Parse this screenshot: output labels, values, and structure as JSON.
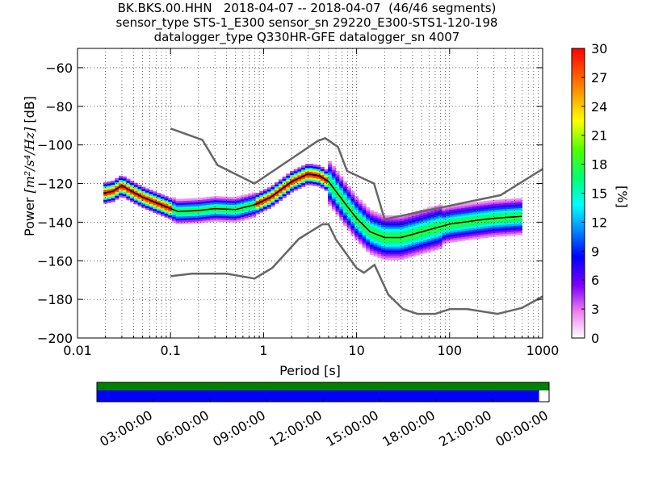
{
  "header": {
    "line1": "BK.BKS.00.HHN   2018-04-07 -- 2018-04-07  (46/46 segments)",
    "line2": "sensor_type STS-1_E300 sensor_sn 29220_E300-STS1-120-198",
    "line3": "datalogger_type Q330HR-GFE datalogger_sn 4007"
  },
  "chart_data": {
    "type": "heatmap",
    "xlabel": "Period [s]",
    "ylabel_prefix": "Power ",
    "ylabel_units": "[m²/s⁴/Hz]",
    "ylabel_suffix": " [dB]",
    "xscale": "log",
    "xlim": [
      0.01,
      1000
    ],
    "ylim": [
      -200,
      -50
    ],
    "xticks": [
      {
        "v": 0.01,
        "label": "0.01"
      },
      {
        "v": 0.1,
        "label": "0.1"
      },
      {
        "v": 1,
        "label": "1"
      },
      {
        "v": 10,
        "label": "10"
      },
      {
        "v": 100,
        "label": "100"
      },
      {
        "v": 1000,
        "label": "1000"
      }
    ],
    "yticks": [
      {
        "v": -60,
        "label": "−60"
      },
      {
        "v": -80,
        "label": "−80"
      },
      {
        "v": -100,
        "label": "−100"
      },
      {
        "v": -120,
        "label": "−120"
      },
      {
        "v": -140,
        "label": "−140"
      },
      {
        "v": -160,
        "label": "−160"
      },
      {
        "v": -180,
        "label": "−180"
      },
      {
        "v": -200,
        "label": "−200"
      }
    ],
    "grid": true,
    "mean_curve": {
      "color": "#000000",
      "x": [
        0.019,
        0.024,
        0.03,
        0.035,
        0.05,
        0.08,
        0.12,
        0.2,
        0.3,
        0.5,
        0.8,
        1.2,
        2,
        3,
        4,
        5,
        6,
        8,
        10,
        14,
        20,
        30,
        50,
        100,
        200,
        300,
        600
      ],
      "y": [
        -125,
        -124,
        -121,
        -123,
        -127,
        -131,
        -134.5,
        -134,
        -133,
        -133.5,
        -131,
        -127,
        -119,
        -115,
        -116,
        -119,
        -124,
        -132,
        -138,
        -145,
        -148,
        -148,
        -145,
        -141,
        -139,
        -138,
        -137
      ]
    },
    "noise_models": {
      "color": "#666666",
      "high": {
        "x": [
          0.1,
          0.22,
          0.32,
          0.8,
          3.8,
          4.6,
          6.3,
          7.9,
          15.4,
          20,
          354,
          1000
        ],
        "y": [
          -91.5,
          -97.4,
          -110.5,
          -120,
          -98,
          -96.5,
          -101,
          -113.5,
          -120,
          -138.5,
          -126,
          -112.5
        ]
      },
      "low": {
        "x": [
          0.1,
          0.17,
          0.4,
          0.8,
          1.24,
          2.4,
          4.3,
          5,
          6,
          10,
          12,
          15.6,
          21.9,
          31.6,
          45,
          70,
          101,
          154,
          328,
          600,
          1000
        ],
        "y": [
          -168,
          -166.7,
          -166.7,
          -169.2,
          -163.7,
          -148.6,
          -141.1,
          -141.1,
          -149,
          -163.8,
          -166.2,
          -162.1,
          -177.5,
          -185,
          -187.5,
          -187.5,
          -185,
          -185,
          -187.5,
          -184.4,
          -178.5
        ]
      }
    },
    "colorbar": {
      "label": "[%]",
      "min": 0,
      "max": 30,
      "ticks": [
        {
          "v": 30,
          "label": "30"
        },
        {
          "v": 27,
          "label": "27"
        },
        {
          "v": 24,
          "label": "24"
        },
        {
          "v": 21,
          "label": "21"
        },
        {
          "v": 18,
          "label": "18"
        },
        {
          "v": 15,
          "label": "15"
        },
        {
          "v": 12,
          "label": "12"
        },
        {
          "v": 9,
          "label": "9"
        },
        {
          "v": 6,
          "label": "6"
        },
        {
          "v": 3,
          "label": "3"
        },
        {
          "v": 0,
          "label": "0"
        }
      ]
    }
  },
  "coverage": {
    "colors": {
      "data": "#0000ff",
      "total": "#008000",
      "gap": "#ffffff"
    },
    "time_labels": [
      "03:00:00",
      "06:00:00",
      "09:00:00",
      "12:00:00",
      "15:00:00",
      "18:00:00",
      "21:00:00",
      "00:00:00"
    ],
    "data_fraction": 0.978
  }
}
